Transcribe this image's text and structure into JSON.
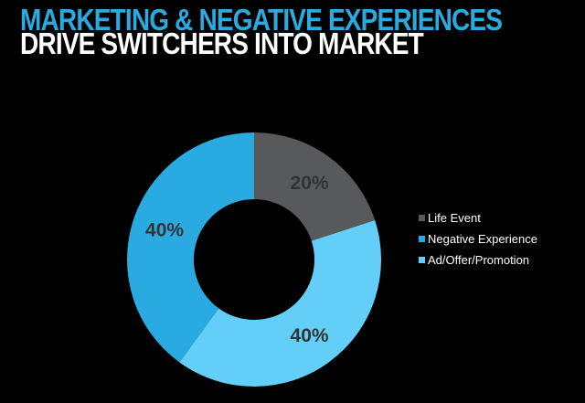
{
  "slide": {
    "title_line1": "MARKETING & NEGATIVE EXPERIENCES",
    "title_line2": "DRIVE SWITCHERS INTO MARKET",
    "title_line1_color": "#29ABE2",
    "title_line2_color": "#FFFFFF",
    "background_color": "#000000"
  },
  "chart_data": {
    "type": "pie",
    "subtype": "donut",
    "title": "",
    "categories": [
      "Life Event",
      "Negative Experience",
      "Ad/Offer/Promotion"
    ],
    "values": [
      20,
      40,
      40
    ],
    "unit": "%",
    "data_label_color": "#333333",
    "segments_clockwise_from_top": [
      {
        "label": "Life Event",
        "value": 20,
        "data_label": "20%",
        "color": "#58595B"
      },
      {
        "label": "Ad/Offer/Promotion",
        "value": 40,
        "data_label": "40%",
        "color": "#63CFF8"
      },
      {
        "label": "Negative Experience",
        "value": 40,
        "data_label": "40%",
        "color": "#29ABE2"
      }
    ],
    "legend": {
      "position": "right",
      "items": [
        {
          "label": "Life Event",
          "color": "#58595B"
        },
        {
          "label": "Negative Experience",
          "color": "#29ABE2"
        },
        {
          "label": "Ad/Offer/Promotion",
          "color": "#63CFF8"
        }
      ]
    }
  }
}
